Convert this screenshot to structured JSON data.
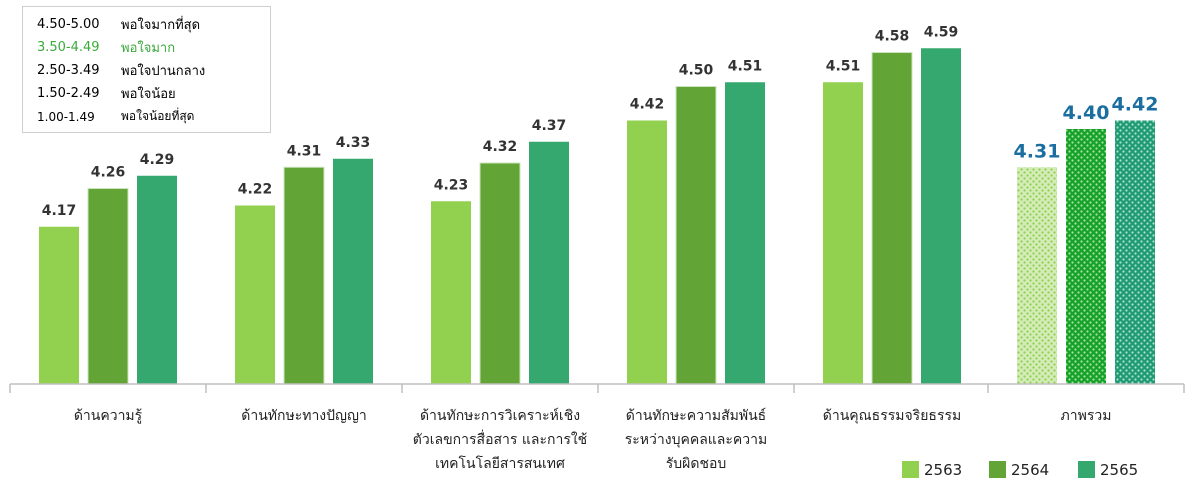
{
  "chart_data": {
    "type": "bar",
    "categories": [
      [
        "ด้านความรู้"
      ],
      [
        "ด้านทักษะทางปัญญา"
      ],
      [
        "ด้านทักษะการวิเคราะห์เชิง",
        "ตัวเลขการสื่อสาร และการใช้",
        "เทคโนโลยีสารสนเทศ"
      ],
      [
        "ด้านทักษะความสัมพันธ์",
        "ระหว่างบุคคลและความ",
        "รับผิดชอบ"
      ],
      [
        "ด้านคุณธรรมจริยธรรม"
      ],
      [
        "ภาพรวม"
      ]
    ],
    "series": [
      {
        "name": "2563",
        "color": "#92d050",
        "values": [
          4.17,
          4.22,
          4.23,
          4.42,
          4.51,
          4.31
        ]
      },
      {
        "name": "2564",
        "color": "#62a436",
        "values": [
          4.26,
          4.31,
          4.32,
          4.5,
          4.58,
          4.4
        ]
      },
      {
        "name": "2565",
        "color": "#34a86e",
        "values": [
          4.29,
          4.33,
          4.37,
          4.51,
          4.59,
          4.42
        ]
      }
    ],
    "value_labels": [
      [
        "4.17",
        "4.22",
        "4.23",
        "4.42",
        "4.51",
        "4.31"
      ],
      [
        "4.26",
        "4.31",
        "4.32",
        "4.50",
        "4.58",
        "4.40"
      ],
      [
        "4.29",
        "4.33",
        "4.37",
        "4.51",
        "4.59",
        "4.42"
      ]
    ],
    "total_category_index": 5,
    "total_label_color": "#1b6fa0",
    "total_style": "patterned",
    "ylim": [
      3.8,
      4.62
    ],
    "grid": false,
    "legend_position": "bottom-right"
  },
  "scale_legend": [
    {
      "range": "4.50-5.00",
      "desc": "พอใจมากที่สุด",
      "color": "#111111"
    },
    {
      "range": "3.50-4.49",
      "desc": "พอใจมาก",
      "color": "#3aaa3a"
    },
    {
      "range": "2.50-3.49",
      "desc": "พอใจปานกลาง",
      "color": "#111111"
    },
    {
      "range": "1.50-2.49",
      "desc": "พอใจน้อย",
      "color": "#111111"
    },
    {
      "range": "1.00-1.49",
      "desc": "พอใจน้อยที่สุด",
      "color": "#111111"
    }
  ],
  "colors": {
    "axis": "#bfbfbf"
  }
}
